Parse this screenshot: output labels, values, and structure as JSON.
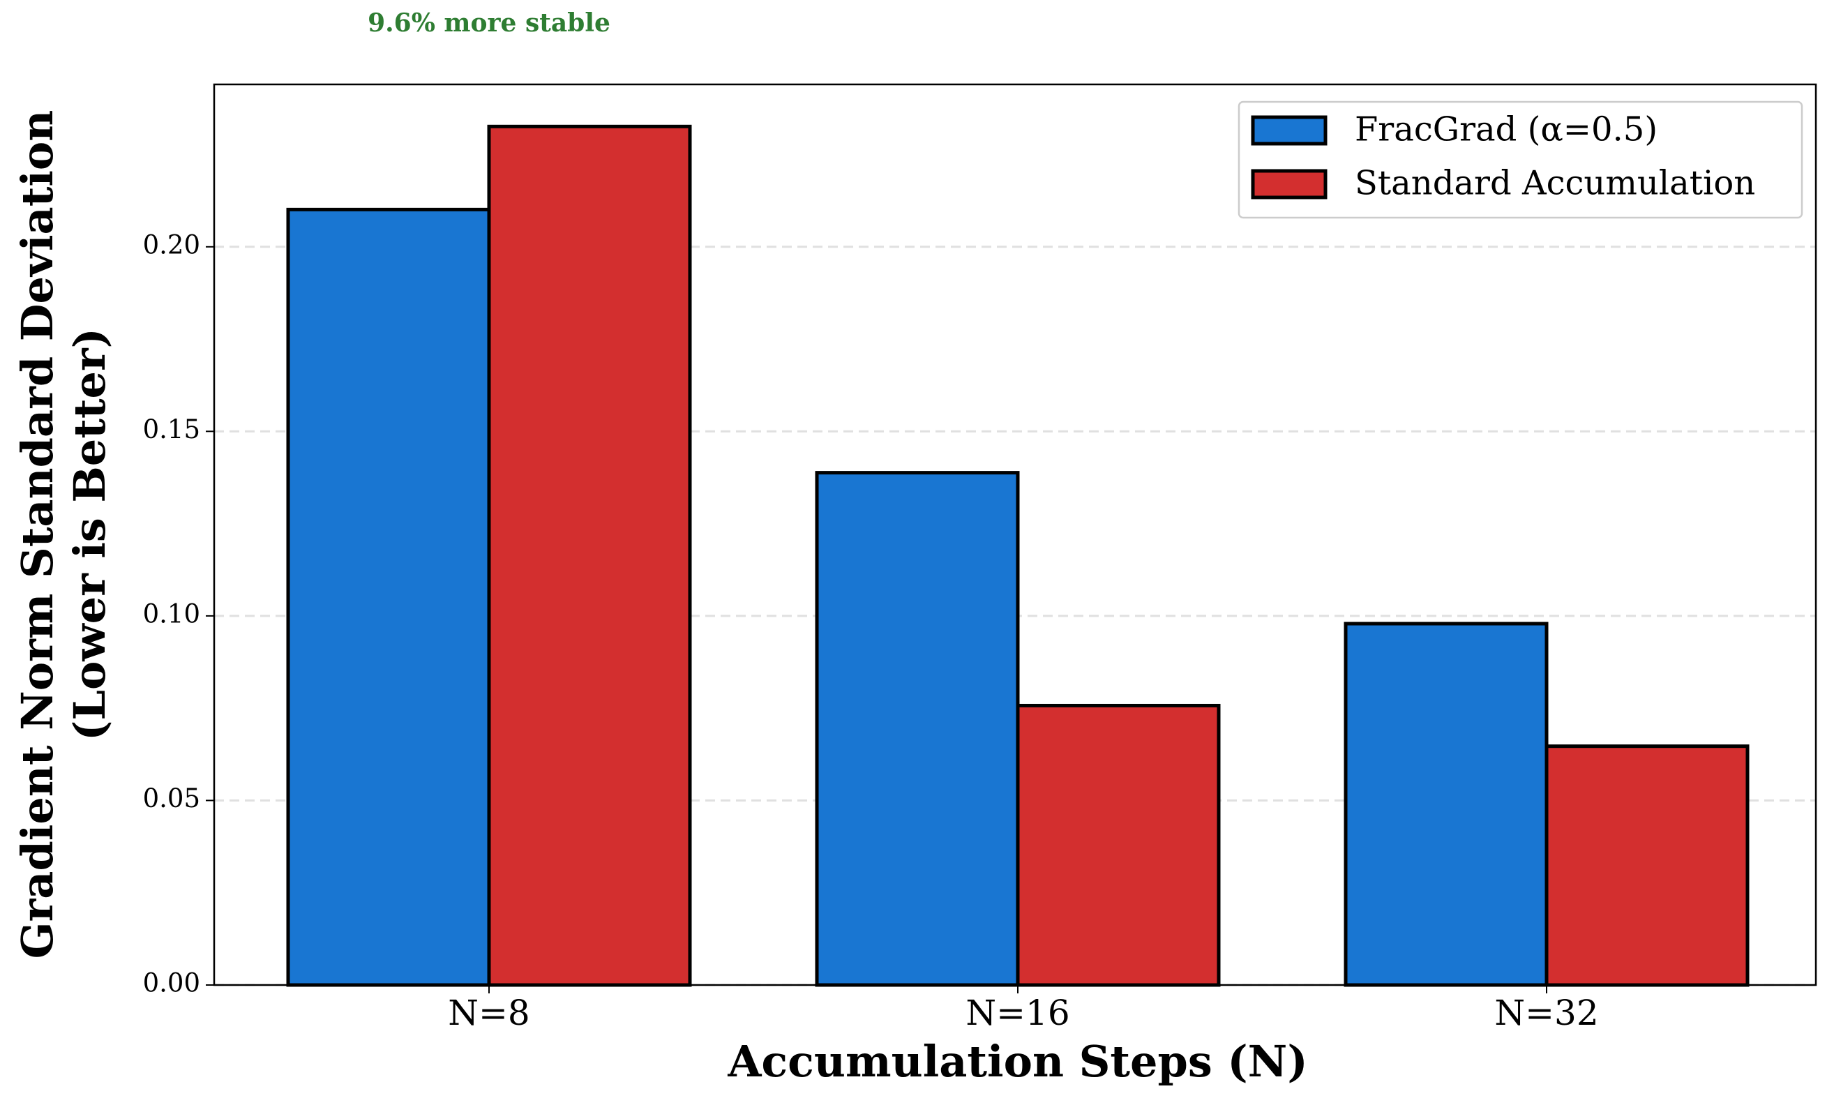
{
  "chart_data": {
    "type": "bar",
    "annotation": "9.6% more stable",
    "x_label": "Accumulation Steps (N)",
    "y_label": [
      "Gradient Norm Standard Deviation",
      "(Lower is Better)"
    ],
    "categories": [
      "N=8",
      "N=16",
      "N=32"
    ],
    "series": [
      {
        "name": "FracGrad (α=0.5)",
        "color": "#1976d2",
        "values": [
          0.2101,
          0.1388,
          0.0979
        ]
      },
      {
        "name": "Standard Accumulation",
        "color": "#d32f2f",
        "values": [
          0.2326,
          0.0757,
          0.0647
        ]
      }
    ],
    "ylim": [
      0,
      0.244
    ],
    "yticks": [
      {
        "value": 0,
        "label": "0.00"
      },
      {
        "value": 0.05,
        "label": "0.05"
      },
      {
        "value": 0.1,
        "label": "0.10"
      },
      {
        "value": 0.15,
        "label": "0.15"
      },
      {
        "value": 0.2,
        "label": "0.20"
      }
    ],
    "grid": true,
    "legend": "upper right"
  }
}
